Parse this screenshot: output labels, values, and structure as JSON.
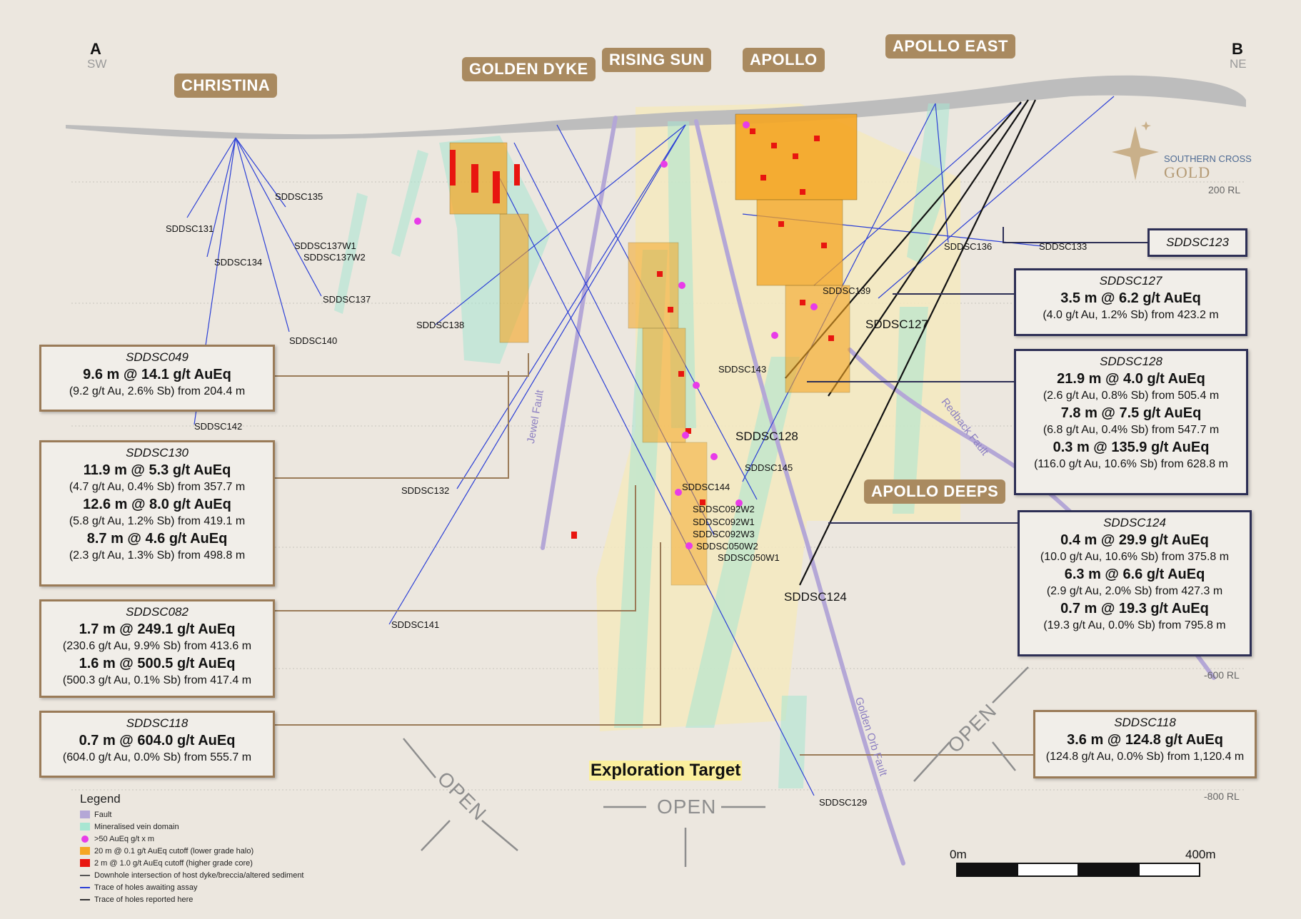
{
  "section_ends": {
    "left_letter": "A",
    "left_dir": "SW",
    "right_letter": "B",
    "right_dir": "NE"
  },
  "prospects": [
    "CHRISTINA",
    "GOLDEN DYKE",
    "RISING SUN",
    "APOLLO",
    "APOLLO EAST"
  ],
  "apollo_deeps": "APOLLO DEEPS",
  "rl_labels": [
    "200 RL",
    "-600 RL",
    "-800 RL"
  ],
  "faults": [
    "Jewel Fault",
    "Redback Fault",
    "Golden Orb Fault"
  ],
  "holes": [
    "SDDSC135",
    "SDDSC131",
    "SDDSC134",
    "SDDSC137W1",
    "SDDSC137W2",
    "SDDSC137",
    "SDDSC140",
    "SDDSC138",
    "SDDSC142",
    "SDDSC132",
    "SDDSC141",
    "SDDSC136",
    "SDDSC133",
    "SDDSC139",
    "SDDSC127",
    "SDDSC143",
    "SDDSC128",
    "SDDSC145",
    "SDDSC144",
    "SDDSC092W2",
    "SDDSC092W1",
    "SDDSC092W3",
    "SDDSC050W2",
    "SDDSC050W1",
    "SDDSC124",
    "SDDSC129"
  ],
  "callouts": [
    {
      "id": "SDDSC049",
      "lines": [
        {
          "b": true,
          "t": "9.6 m @ 14.1 g/t AuEq"
        },
        {
          "b": false,
          "t": "(9.2 g/t Au, 2.6% Sb) from 204.4 m"
        }
      ]
    },
    {
      "id": "SDDSC130",
      "lines": [
        {
          "b": true,
          "t": "11.9 m @ 5.3 g/t AuEq"
        },
        {
          "b": false,
          "t": "(4.7 g/t Au, 0.4% Sb) from 357.7 m"
        },
        {
          "b": true,
          "t": "12.6 m @ 8.0 g/t AuEq"
        },
        {
          "b": false,
          "t": "(5.8 g/t Au, 1.2% Sb) from 419.1 m"
        },
        {
          "b": true,
          "t": "8.7 m @ 4.6 g/t AuEq"
        },
        {
          "b": false,
          "t": "(2.3 g/t Au, 1.3% Sb) from 498.8 m"
        }
      ]
    },
    {
      "id": "SDDSC082",
      "lines": [
        {
          "b": true,
          "t": "1.7 m @ 249.1 g/t AuEq"
        },
        {
          "b": false,
          "t": "(230.6 g/t Au, 9.9% Sb) from 413.6 m"
        },
        {
          "b": true,
          "t": "1.6 m @ 500.5 g/t AuEq"
        },
        {
          "b": false,
          "t": "(500.3 g/t Au, 0.1% Sb) from 417.4 m"
        }
      ]
    },
    {
      "id": "SDDSC118",
      "lines": [
        {
          "b": true,
          "t": "0.7 m @ 604.0 g/t AuEq"
        },
        {
          "b": false,
          "t": "(604.0 g/t Au, 0.0% Sb) from 555.7 m"
        }
      ]
    },
    {
      "id": "SDDSC123",
      "lines": []
    },
    {
      "id": "SDDSC127",
      "lines": [
        {
          "b": true,
          "t": "3.5 m @ 6.2 g/t AuEq"
        },
        {
          "b": false,
          "t": "(4.0 g/t Au, 1.2% Sb) from 423.2 m"
        }
      ]
    },
    {
      "id": "SDDSC128",
      "lines": [
        {
          "b": true,
          "t": "21.9 m @ 4.0 g/t AuEq"
        },
        {
          "b": false,
          "t": "(2.6 g/t Au, 0.8% Sb) from 505.4 m"
        },
        {
          "b": true,
          "t": "7.8 m @ 7.5 g/t AuEq"
        },
        {
          "b": false,
          "t": "(6.8 g/t Au, 0.4% Sb) from 547.7 m"
        },
        {
          "b": true,
          "t": "0.3 m @ 135.9 g/t AuEq"
        },
        {
          "b": false,
          "t": "(116.0 g/t Au, 10.6% Sb) from 628.8 m"
        }
      ]
    },
    {
      "id": "SDDSC124",
      "lines": [
        {
          "b": true,
          "t": "0.4 m @ 29.9 g/t AuEq"
        },
        {
          "b": false,
          "t": "(10.0 g/t Au, 10.6% Sb) from 375.8 m"
        },
        {
          "b": true,
          "t": "6.3 m @ 6.6 g/t AuEq"
        },
        {
          "b": false,
          "t": "(2.9 g/t Au, 2.0% Sb) from 427.3 m"
        },
        {
          "b": true,
          "t": "0.7 m @ 19.3 g/t AuEq"
        },
        {
          "b": false,
          "t": "(19.3 g/t Au, 0.0% Sb) from 795.8 m"
        }
      ]
    },
    {
      "id": "SDDSC118",
      "lines": [
        {
          "b": true,
          "t": "3.6 m @ 124.8 g/t AuEq"
        },
        {
          "b": false,
          "t": "(124.8 g/t Au, 0.0% Sb) from 1,120.4 m"
        }
      ]
    }
  ],
  "exploration_target": "Exploration Target",
  "open_label": "OPEN",
  "legend": {
    "title": "Legend",
    "items": [
      {
        "label": "Fault",
        "color": "#b4a7d6"
      },
      {
        "label": "Mineralised vein domain",
        "color": "#a8e6d2"
      },
      {
        "label": ">50 AuEq g/t x m",
        "color": "#e83ce8"
      },
      {
        "label": "20 m @ 0.1 g/t AuEq cutoff (lower grade halo)",
        "color": "#f5a623"
      },
      {
        "label": "2 m @ 1.0 g/t AuEq cutoff (higher grade core)",
        "color": "#e8150f"
      },
      {
        "label": "Downhole intersection of host dyke/breccia/altered sediment",
        "color": "#555555"
      },
      {
        "label": "Trace of holes awaiting assay",
        "color": "#2b3fd6"
      },
      {
        "label": "Trace of holes reported here",
        "color": "#333333"
      }
    ]
  },
  "scale": {
    "left": "0m",
    "right": "400m"
  },
  "logo": {
    "line1": "SOUTHERN CROSS",
    "line2": "GOLD"
  }
}
